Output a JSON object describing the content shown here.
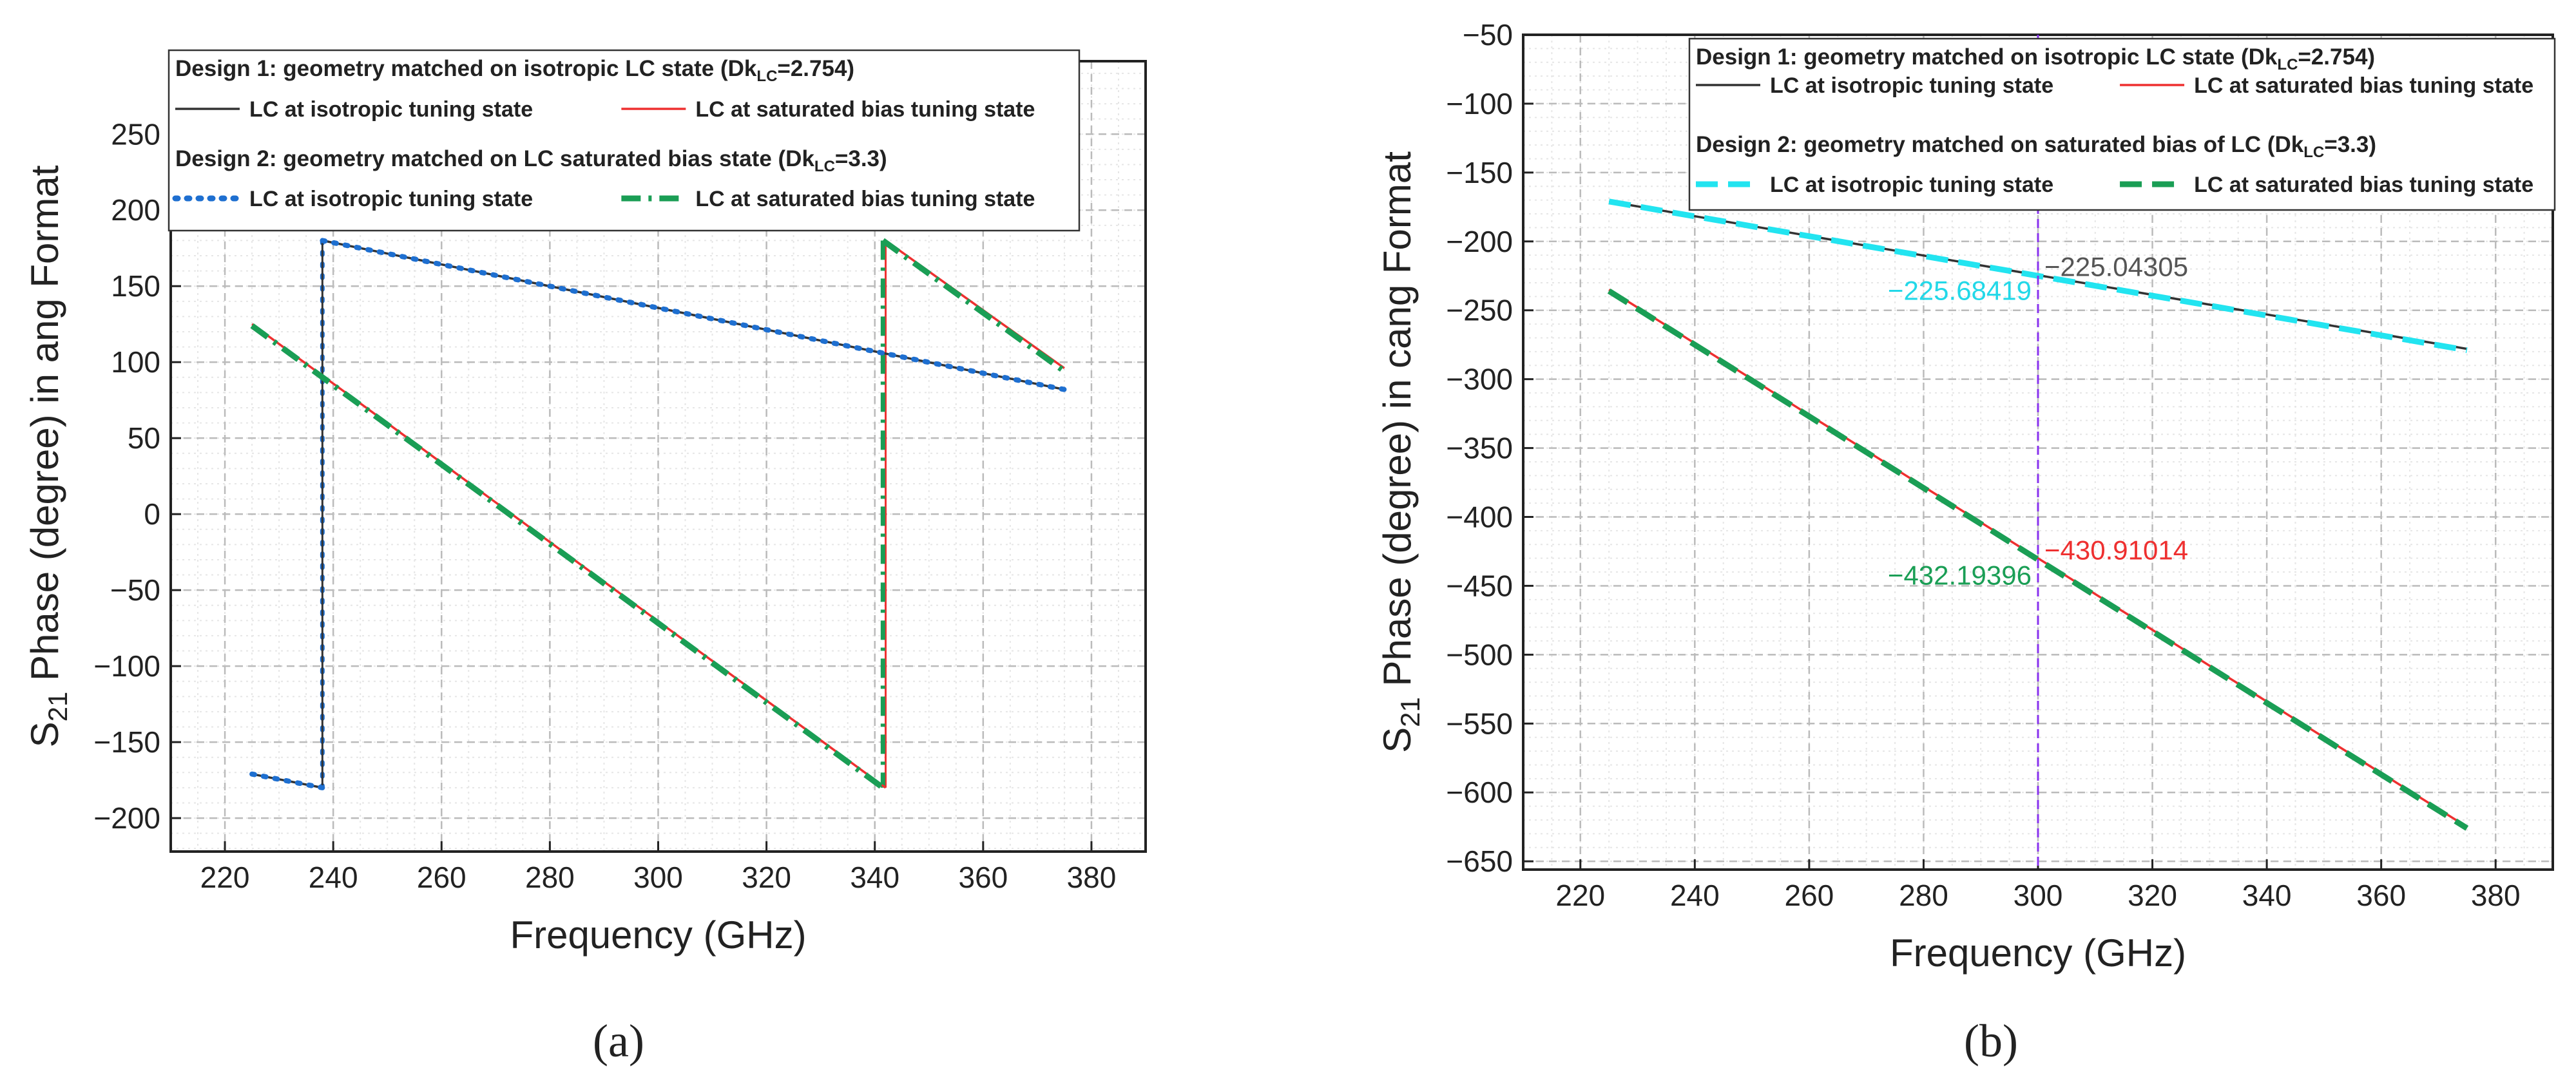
{
  "chart_data": [
    {
      "id": "a",
      "type": "line",
      "panel_label": "(a)",
      "xlabel": "Frequency (GHz)",
      "ylabel": "S21 Phase (degree) in ang Format",
      "ylabel_parts": {
        "prefix": "S",
        "sub": "21",
        "rest": " Phase (degree) in ang Format"
      },
      "xlim": [
        210,
        390
      ],
      "ylim": [
        -222,
        298
      ],
      "xticks": [
        220,
        240,
        260,
        280,
        300,
        320,
        340,
        360,
        380
      ],
      "yticks": [
        -200,
        -150,
        -100,
        -50,
        0,
        50,
        100,
        150,
        200,
        250
      ],
      "grid": true,
      "legend": {
        "design1_title": "Design 1: geometry matched on isotropic LC state (Dk",
        "design1_title_sub": "LC",
        "design1_title_end": "=2.754)",
        "design2_title": "Design 2: geometry matched on LC saturated bias state (Dk",
        "design2_title_sub": "LC",
        "design2_title_end": "=3.3)",
        "labels": [
          "LC at isotropic tuning state",
          "LC at saturated bias tuning state",
          "LC at isotropic tuning state",
          "LC at saturated bias tuning state"
        ]
      },
      "series": [
        {
          "name": "Design 1: LC at isotropic tuning state",
          "color": "#333333",
          "style": "solid",
          "segments": [
            [
              [
                225,
                -171
              ],
              [
                238,
                -180
              ]
            ],
            [
              [
                238,
                180
              ],
              [
                375,
                82
              ]
            ]
          ]
        },
        {
          "name": "Design 1: LC at saturated bias tuning state",
          "color": "#ee3030",
          "style": "solid",
          "segments": [
            [
              [
                225,
                125
              ],
              [
                342,
                -180
              ]
            ],
            [
              [
                342,
                180
              ],
              [
                375,
                96
              ]
            ]
          ]
        },
        {
          "name": "Design 2: LC at isotropic tuning state",
          "color": "#1e6fd0",
          "style": "dot",
          "segments": [
            [
              [
                225,
                -171
              ],
              [
                238,
                -180
              ]
            ],
            [
              [
                238,
                180
              ],
              [
                375,
                82
              ]
            ]
          ]
        },
        {
          "name": "Design 2: LC at saturated bias tuning state",
          "color": "#1a9e55",
          "style": "dashdot",
          "segments": [
            [
              [
                225,
                124
              ],
              [
                341.5,
                -180
              ]
            ],
            [
              [
                341.5,
                180
              ],
              [
                375,
                94
              ]
            ]
          ]
        }
      ],
      "jumps": [
        {
          "x": 238,
          "color": "#1e6fd0",
          "style": "dot"
        },
        {
          "x": 238,
          "color": "#333333",
          "style": "solid"
        },
        {
          "x": 342,
          "color": "#ee3030",
          "style": "solid"
        },
        {
          "x": 341.5,
          "color": "#1a9e55",
          "style": "dashdot"
        }
      ]
    },
    {
      "id": "b",
      "type": "line",
      "panel_label": "(b)",
      "xlabel": "Frequency (GHz)",
      "ylabel": "S21 Phase (degree) in cang Format",
      "ylabel_parts": {
        "prefix": "S",
        "sub": "21",
        "rest": " Phase (degree) in cang Format"
      },
      "xlim": [
        210,
        390
      ],
      "ylim": [
        -656,
        -50
      ],
      "xticks": [
        220,
        240,
        260,
        280,
        300,
        320,
        340,
        360,
        380
      ],
      "yticks": [
        -650,
        -600,
        -550,
        -500,
        -450,
        -400,
        -350,
        -300,
        -250,
        -200,
        -150,
        -100,
        -50
      ],
      "ytick_labels": [
        "−650",
        "−600",
        "−550",
        "−500",
        "−450",
        "−400",
        "−350",
        "−300",
        "−250",
        "−200",
        "−150",
        "−100",
        "−50"
      ],
      "grid": true,
      "legend": {
        "design1_title": "Design 1: geometry matched on isotropic LC state (Dk",
        "design1_title_sub": "LC",
        "design1_title_end": "=2.754)",
        "design2_title": "Design 2: geometry matched on saturated bias of LC (Dk",
        "design2_title_sub": "LC",
        "design2_title_end": "=3.3)",
        "labels": [
          "LC at isotropic tuning state",
          "LC at saturated bias tuning state",
          "LC at isotropic tuning state",
          "LC at saturated bias tuning state"
        ]
      },
      "series": [
        {
          "name": "Design 1: LC at isotropic tuning state",
          "color": "#333333",
          "style": "solid",
          "segments": [
            [
              [
                225,
                -171
              ],
              [
                375,
                -278
              ]
            ]
          ]
        },
        {
          "name": "Design 1: LC at saturated bias tuning state",
          "color": "#ee3030",
          "style": "solid",
          "segments": [
            [
              [
                225,
                -235
              ],
              [
                375,
                -625
              ]
            ]
          ]
        },
        {
          "name": "Design 2: LC at isotropic tuning state",
          "color": "#22e4f0",
          "style": "dash",
          "segments": [
            [
              [
                225,
                -171
              ],
              [
                375,
                -279
              ]
            ]
          ]
        },
        {
          "name": "Design 2: LC at saturated bias tuning state",
          "color": "#1a9e55",
          "style": "dash",
          "segments": [
            [
              [
                225,
                -236
              ],
              [
                375,
                -626
              ]
            ]
          ]
        }
      ],
      "marker_line": {
        "x": 300,
        "color": "#8833ee"
      },
      "annotations": [
        {
          "text": "−225.04305",
          "x": 300,
          "y": -225.04,
          "color": "#555555",
          "side": "right"
        },
        {
          "text": "−225.68419",
          "x": 300,
          "y": -225.68,
          "color": "#22d8e8",
          "side": "left"
        },
        {
          "text": "−430.91014",
          "x": 300,
          "y": -430.91,
          "color": "#ee3030",
          "side": "right"
        },
        {
          "text": "−432.19396",
          "x": 300,
          "y": -432.19,
          "color": "#1a9e55",
          "side": "left"
        }
      ]
    }
  ]
}
